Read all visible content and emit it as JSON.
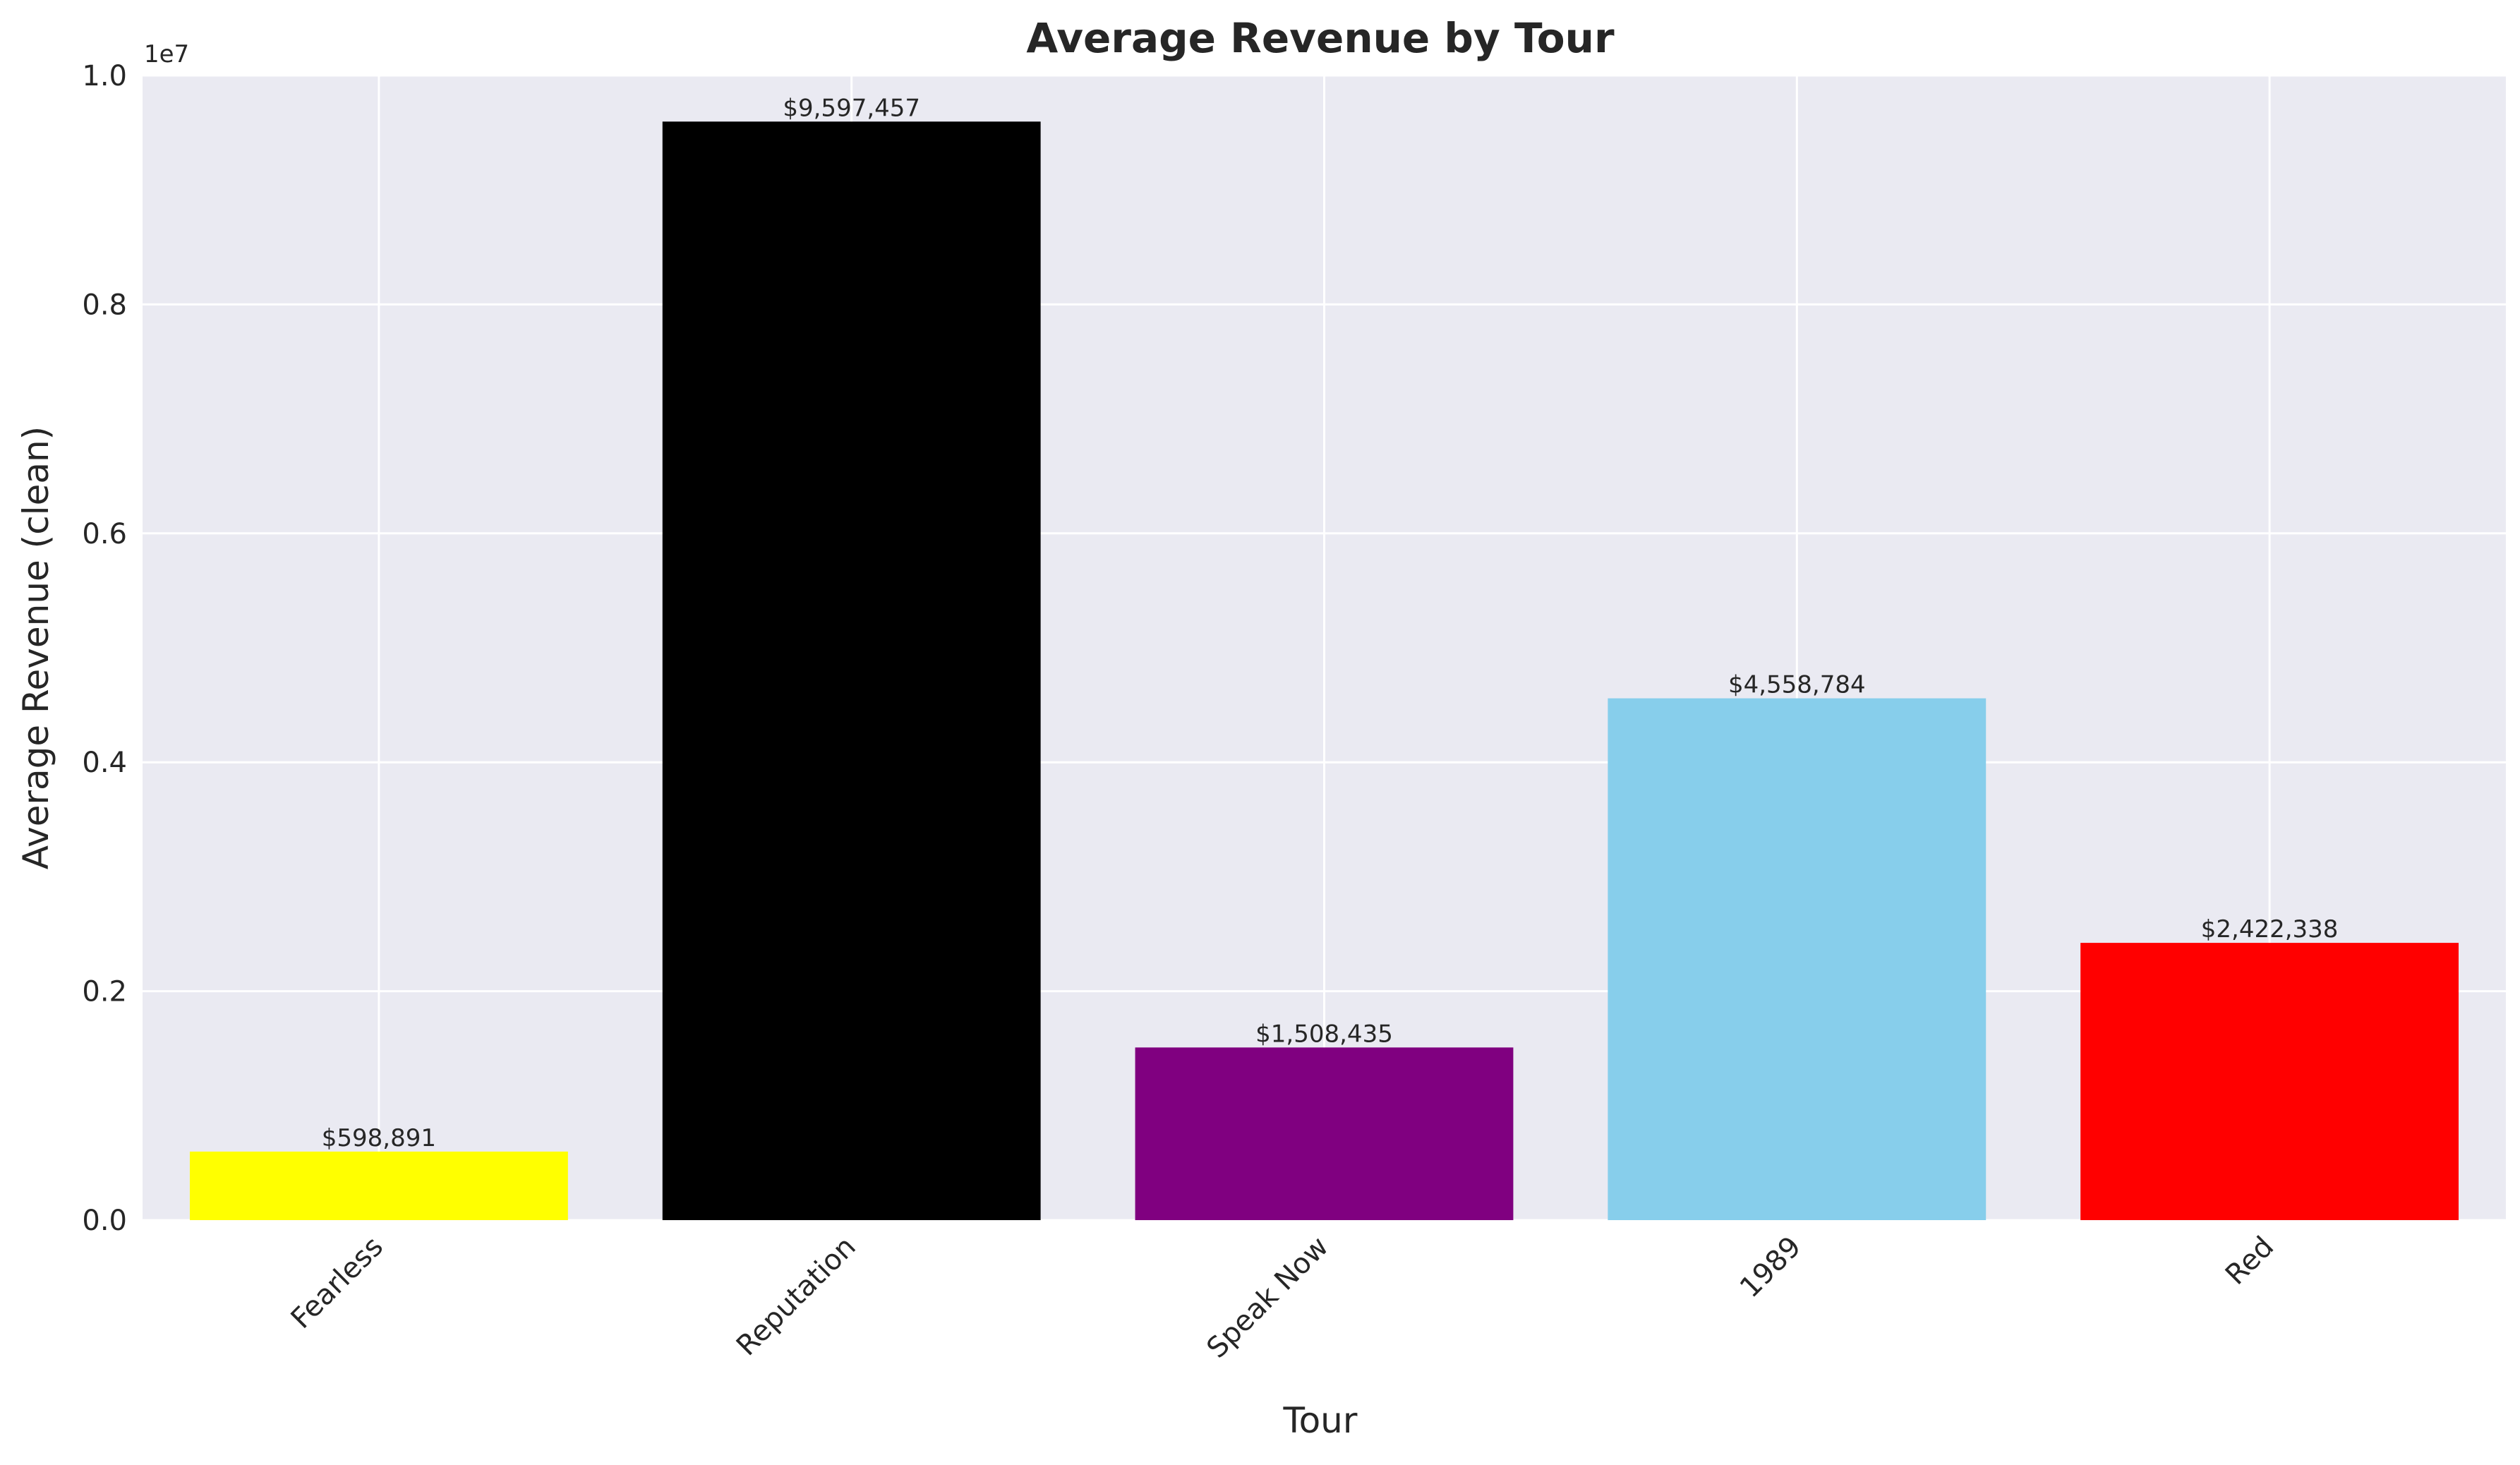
{
  "chart_data": {
    "type": "bar",
    "title": "Average Revenue by Tour",
    "xlabel": "Tour",
    "ylabel": "Average Revenue (clean)",
    "offset_label": "1e7",
    "categories": [
      "Fearless",
      "Reputation",
      "Speak Now",
      "1989",
      "Red"
    ],
    "values": [
      598891,
      9597457,
      1508435,
      4558784,
      2422338
    ],
    "value_labels": [
      "$598,891",
      "$9,597,457",
      "$1,508,435",
      "$4,558,784",
      "$2,422,338"
    ],
    "colors": [
      "#ffff00",
      "#000000",
      "#800080",
      "#87ceeb",
      "#ff0000"
    ],
    "ylim": [
      0,
      10000000
    ],
    "yticks": [
      0,
      2000000,
      4000000,
      6000000,
      8000000,
      10000000
    ],
    "ytick_labels": [
      "0.0",
      "0.2",
      "0.4",
      "0.6",
      "0.8",
      "1.0"
    ],
    "grid": true,
    "background": "#eaeaf2",
    "grid_color": "#ffffff"
  }
}
